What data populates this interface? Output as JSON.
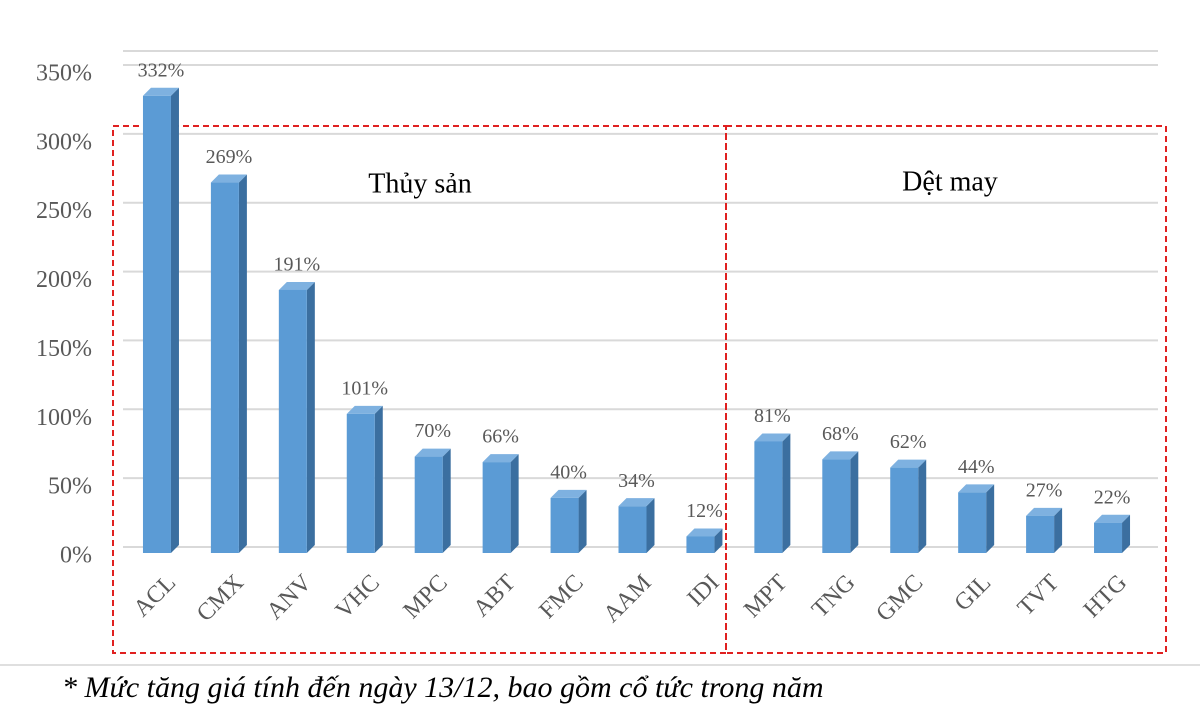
{
  "chart_data": {
    "type": "bar",
    "categories": [
      "ACL",
      "CMX",
      "ANV",
      "VHC",
      "MPC",
      "ABT",
      "FMC",
      "AAM",
      "IDI",
      "MPT",
      "TNG",
      "GMC",
      "GIL",
      "TVT",
      "HTG"
    ],
    "values": [
      332,
      269,
      191,
      101,
      70,
      66,
      40,
      34,
      12,
      81,
      68,
      62,
      44,
      27,
      22
    ],
    "value_labels": [
      "332%",
      "269%",
      "191%",
      "101%",
      "70%",
      "66%",
      "40%",
      "34%",
      "12%",
      "81%",
      "68%",
      "62%",
      "44%",
      "27%",
      "22%"
    ],
    "color": "#5b9bd5",
    "ylim": [
      0,
      350
    ],
    "yticks": [
      {
        "value": 0,
        "label": "0%"
      },
      {
        "value": 50,
        "label": "50%"
      },
      {
        "value": 100,
        "label": "100%"
      },
      {
        "value": 150,
        "label": "150%"
      },
      {
        "value": 200,
        "label": "200%"
      },
      {
        "value": 250,
        "label": "250%"
      },
      {
        "value": 300,
        "label": "300%"
      },
      {
        "value": 350,
        "label": "350%"
      }
    ],
    "grid": true,
    "groups": [
      {
        "label": "Thủy sản"
      },
      {
        "label": "Dệt may"
      }
    ],
    "footnote": "* Mức tăng giá tính đến ngày 13/12, bao gồm cổ tức trong năm"
  }
}
